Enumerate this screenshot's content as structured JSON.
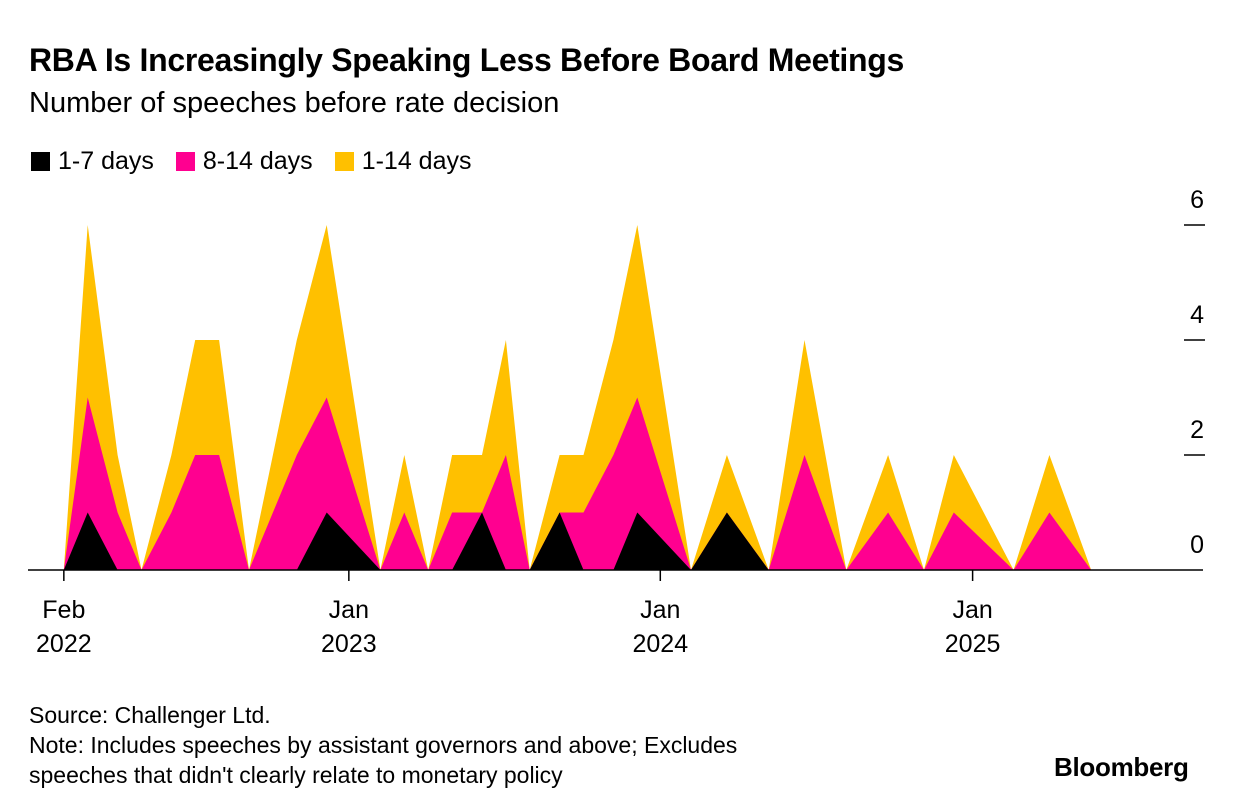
{
  "chart_data": {
    "type": "area",
    "stacked": true,
    "title": "RBA Is Increasingly Speaking Less Before Board Meetings",
    "subtitle": "Number of speeches before rate decision",
    "legend": [
      {
        "name": "1-7 days",
        "color": "#000000"
      },
      {
        "name": "8-14 days",
        "color": "#FF0090"
      },
      {
        "name": "1-14 days",
        "color": "#FFC000"
      }
    ],
    "legend_position": "top-left",
    "xlabel": "",
    "ylabel": "",
    "y_axis_side": "right",
    "ylim": [
      0,
      6
    ],
    "yticks": [
      0,
      2,
      4,
      6
    ],
    "x_range": [
      "2021-12-21",
      "2025-09-28"
    ],
    "xticks": [
      {
        "date": "2022-02-01",
        "label1": "Feb",
        "label2": "2022"
      },
      {
        "date": "2023-01-01",
        "label1": "Jan",
        "label2": "2023"
      },
      {
        "date": "2024-01-01",
        "label1": "Jan",
        "label2": "2024"
      },
      {
        "date": "2025-01-01",
        "label1": "Jan",
        "label2": "2025"
      }
    ],
    "grid": false,
    "x": [
      "2022-02-01",
      "2022-03-01",
      "2022-04-05",
      "2022-05-03",
      "2022-06-07",
      "2022-07-05",
      "2022-08-02",
      "2022-09-06",
      "2022-10-04",
      "2022-11-01",
      "2022-12-06",
      "2023-02-07",
      "2023-03-07",
      "2023-04-04",
      "2023-05-02",
      "2023-06-06",
      "2023-07-04",
      "2023-08-01",
      "2023-09-05",
      "2023-10-03",
      "2023-11-07",
      "2023-12-05",
      "2024-02-06",
      "2024-03-19",
      "2024-05-07",
      "2024-06-18",
      "2024-08-06",
      "2024-09-24",
      "2024-11-05",
      "2024-12-10",
      "2025-02-18",
      "2025-04-01",
      "2025-05-20"
    ],
    "series": [
      {
        "name": "1-7 days",
        "values": [
          0,
          1,
          0,
          0,
          0,
          0,
          0,
          0,
          0,
          0,
          1,
          0,
          0,
          0,
          0,
          1,
          0,
          0,
          1,
          0,
          0,
          1,
          0,
          1,
          0,
          0,
          0,
          0,
          0,
          0,
          0,
          0,
          0
        ]
      },
      {
        "name": "8-14 days",
        "values": [
          0,
          2,
          1,
          0,
          1,
          2,
          2,
          0,
          1,
          2,
          2,
          0,
          1,
          0,
          1,
          0,
          2,
          0,
          0,
          1,
          2,
          2,
          0,
          0,
          0,
          2,
          0,
          1,
          0,
          1,
          0,
          1,
          0
        ]
      },
      {
        "name": "1-14 days",
        "values": [
          0,
          3,
          1,
          0,
          1,
          2,
          2,
          0,
          1,
          2,
          3,
          0,
          1,
          0,
          1,
          1,
          2,
          0,
          1,
          1,
          2,
          3,
          0,
          1,
          0,
          2,
          0,
          1,
          0,
          1,
          0,
          1,
          0
        ]
      }
    ]
  },
  "footer": {
    "source": "Source: Challenger Ltd.",
    "note_line1": "Note: Includes speeches by assistant governors and above; Excludes",
    "note_line2": "speeches that didn't clearly relate to monetary policy"
  },
  "brand": "Bloomberg"
}
